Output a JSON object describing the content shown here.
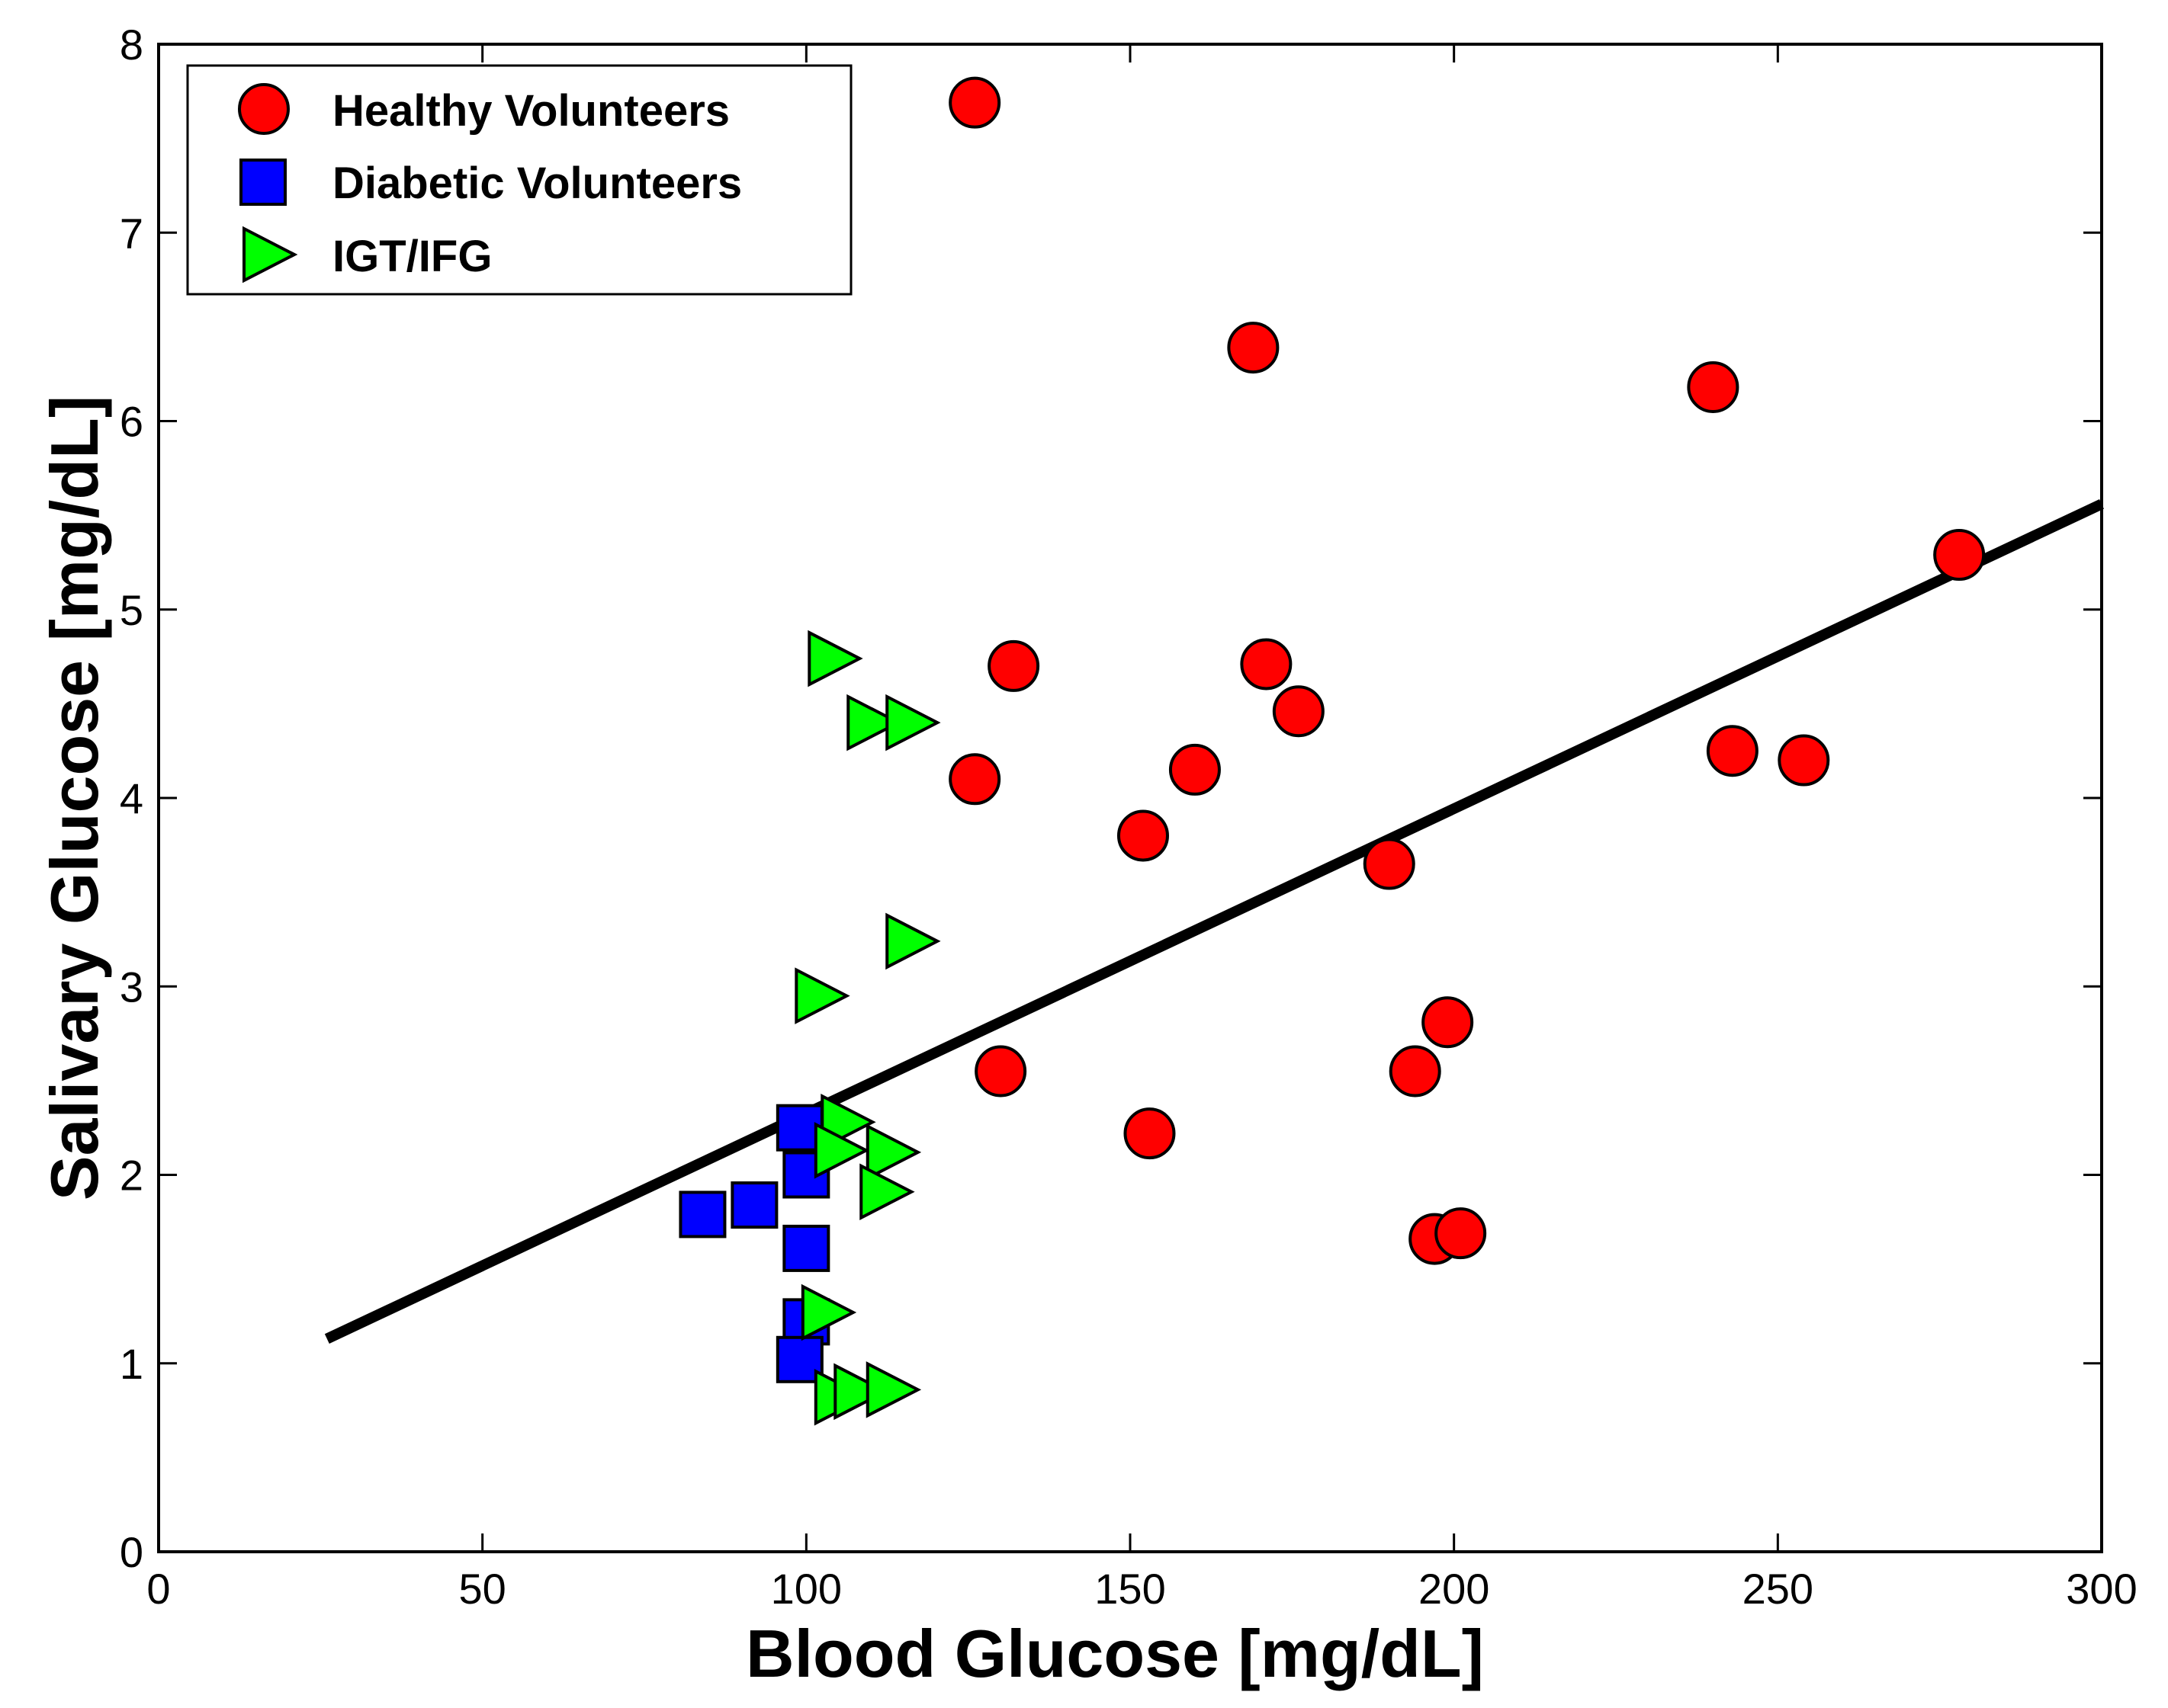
{
  "chart_data": {
    "type": "scatter",
    "title": "",
    "xlabel": "Blood Glucose [mg/dL]",
    "ylabel": "Salivary Glucose [mg/dL]",
    "xlim": [
      0,
      300
    ],
    "ylim": [
      0,
      8
    ],
    "xticks": [
      "0",
      "50",
      "100",
      "150",
      "200",
      "250",
      "300"
    ],
    "yticks": [
      "0",
      "1",
      "2",
      "3",
      "4",
      "5",
      "6",
      "7",
      "8"
    ],
    "grid": false,
    "legend_position": "top-left",
    "colors": {
      "healthy": "#ff0000",
      "diabetic": "#0000ff",
      "igt": "#00ff00",
      "fit": "#000000"
    },
    "series": [
      {
        "name": "Healthy Volunteers",
        "marker": "circle",
        "points": [
          [
            126,
            7.69
          ],
          [
            169,
            6.39
          ],
          [
            240,
            6.18
          ],
          [
            278,
            5.29
          ],
          [
            132,
            4.7
          ],
          [
            171,
            4.71
          ],
          [
            176,
            4.46
          ],
          [
            126,
            4.1
          ],
          [
            160,
            4.15
          ],
          [
            152,
            3.8
          ],
          [
            243,
            4.25
          ],
          [
            254,
            4.2
          ],
          [
            190,
            3.65
          ],
          [
            130,
            2.55
          ],
          [
            153,
            2.22
          ],
          [
            199,
            2.81
          ],
          [
            194,
            2.55
          ],
          [
            197,
            1.66
          ],
          [
            201,
            1.69
          ]
        ]
      },
      {
        "name": "Diabetic Volunteers",
        "marker": "square",
        "points": [
          [
            99,
            2.25
          ],
          [
            100,
            2.0
          ],
          [
            92,
            1.84
          ],
          [
            84,
            1.79
          ],
          [
            100,
            1.61
          ],
          [
            100,
            1.22
          ],
          [
            99,
            1.02
          ]
        ]
      },
      {
        "name": "IGT/IFG",
        "marker": "triangle-right",
        "points": [
          [
            104,
            4.74
          ],
          [
            110,
            4.4
          ],
          [
            116,
            4.4
          ],
          [
            116,
            3.24
          ],
          [
            102,
            2.95
          ],
          [
            106,
            2.28
          ],
          [
            105,
            2.13
          ],
          [
            113,
            2.12
          ],
          [
            112,
            1.91
          ],
          [
            103,
            1.27
          ],
          [
            105,
            0.82
          ],
          [
            108,
            0.85
          ],
          [
            113,
            0.86
          ]
        ]
      }
    ],
    "fit_line": {
      "x": [
        26,
        300
      ],
      "y": [
        1.13,
        5.56
      ]
    }
  }
}
